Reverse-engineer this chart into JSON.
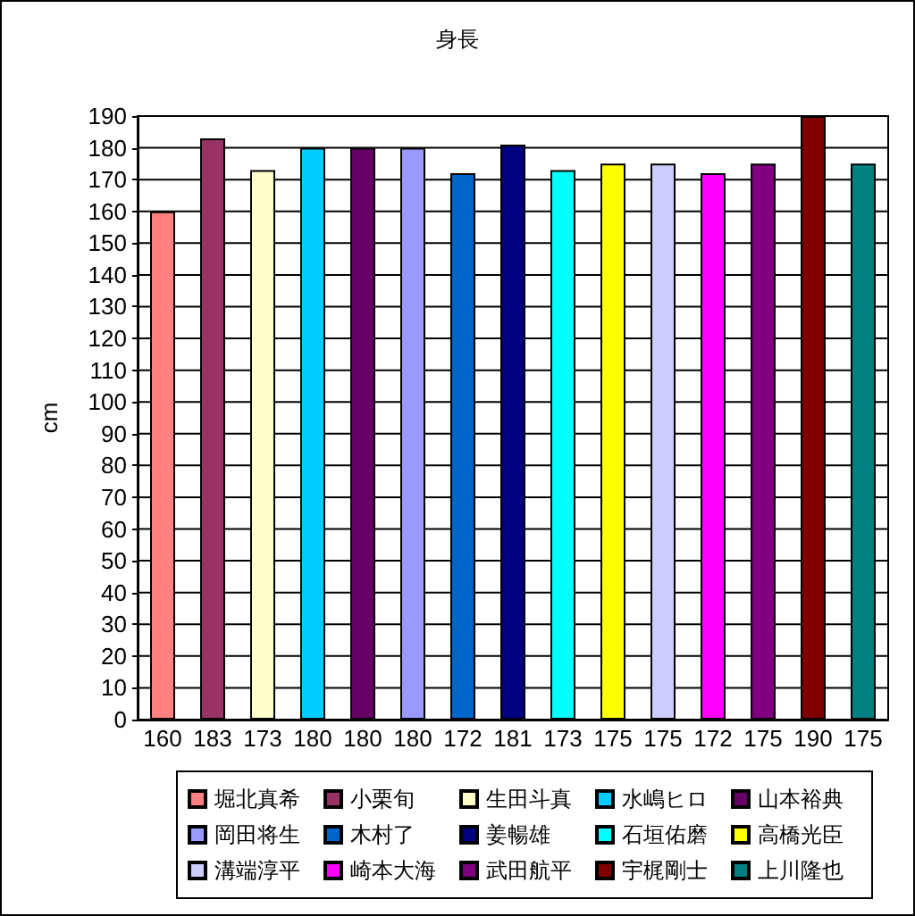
{
  "chart_data": {
    "type": "bar",
    "title": "身長",
    "ylabel": "cm",
    "categories": [
      "160",
      "183",
      "173",
      "180",
      "180",
      "180",
      "172",
      "181",
      "173",
      "175",
      "175",
      "172",
      "175",
      "190",
      "175"
    ],
    "series": [
      {
        "name": "堀北真希",
        "color": "#ff8080",
        "values": [
          160,
          null,
          null,
          null,
          null,
          null,
          null,
          null,
          null,
          null,
          null,
          null,
          null,
          null,
          null
        ]
      },
      {
        "name": "小栗旬",
        "color": "#993366",
        "values": [
          null,
          183,
          null,
          null,
          null,
          null,
          null,
          null,
          null,
          null,
          null,
          null,
          null,
          null,
          null
        ]
      },
      {
        "name": "生田斗真",
        "color": "#ffffcc",
        "values": [
          null,
          null,
          173,
          null,
          null,
          null,
          null,
          null,
          null,
          null,
          null,
          null,
          null,
          null,
          null
        ]
      },
      {
        "name": "水嶋ヒロ",
        "color": "#00ccff",
        "values": [
          null,
          null,
          null,
          180,
          null,
          null,
          null,
          null,
          null,
          null,
          null,
          null,
          null,
          null,
          null
        ]
      },
      {
        "name": "山本裕典",
        "color": "#660066",
        "values": [
          null,
          null,
          null,
          null,
          180,
          null,
          null,
          null,
          null,
          null,
          null,
          null,
          null,
          null,
          null
        ]
      },
      {
        "name": "岡田将生",
        "color": "#9999ff",
        "values": [
          null,
          null,
          null,
          null,
          null,
          180,
          null,
          null,
          null,
          null,
          null,
          null,
          null,
          null,
          null
        ]
      },
      {
        "name": "木村了",
        "color": "#0066cc",
        "values": [
          null,
          null,
          null,
          null,
          null,
          null,
          172,
          null,
          null,
          null,
          null,
          null,
          null,
          null,
          null
        ]
      },
      {
        "name": "姜暢雄",
        "color": "#000080",
        "values": [
          null,
          null,
          null,
          null,
          null,
          null,
          null,
          181,
          null,
          null,
          null,
          null,
          null,
          null,
          null
        ]
      },
      {
        "name": "石垣佑磨",
        "color": "#00ffff",
        "values": [
          null,
          null,
          null,
          null,
          null,
          null,
          null,
          null,
          173,
          null,
          null,
          null,
          null,
          null,
          null
        ]
      },
      {
        "name": "高橋光臣",
        "color": "#ffff00",
        "values": [
          null,
          null,
          null,
          null,
          null,
          null,
          null,
          null,
          null,
          175,
          null,
          null,
          null,
          null,
          null
        ]
      },
      {
        "name": "溝端淳平",
        "color": "#ccccff",
        "values": [
          null,
          null,
          null,
          null,
          null,
          null,
          null,
          null,
          null,
          null,
          175,
          null,
          null,
          null,
          null
        ]
      },
      {
        "name": "崎本大海",
        "color": "#ff00ff",
        "values": [
          null,
          null,
          null,
          null,
          null,
          null,
          null,
          null,
          null,
          null,
          null,
          172,
          null,
          null,
          null
        ]
      },
      {
        "name": "武田航平",
        "color": "#800080",
        "values": [
          null,
          null,
          null,
          null,
          null,
          null,
          null,
          null,
          null,
          null,
          null,
          null,
          175,
          null,
          null
        ]
      },
      {
        "name": "宇梶剛士",
        "color": "#800000",
        "values": [
          null,
          null,
          null,
          null,
          null,
          null,
          null,
          null,
          null,
          null,
          null,
          null,
          null,
          190,
          null
        ]
      },
      {
        "name": "上川隆也",
        "color": "#008080",
        "values": [
          null,
          null,
          null,
          null,
          null,
          null,
          null,
          null,
          null,
          null,
          null,
          null,
          null,
          null,
          175
        ]
      }
    ],
    "ylim": [
      0,
      190
    ],
    "yticks": [
      0,
      10,
      20,
      30,
      40,
      50,
      60,
      70,
      80,
      90,
      100,
      110,
      120,
      130,
      140,
      150,
      160,
      170,
      180,
      190
    ],
    "grid": "y",
    "legend": "bottom"
  }
}
